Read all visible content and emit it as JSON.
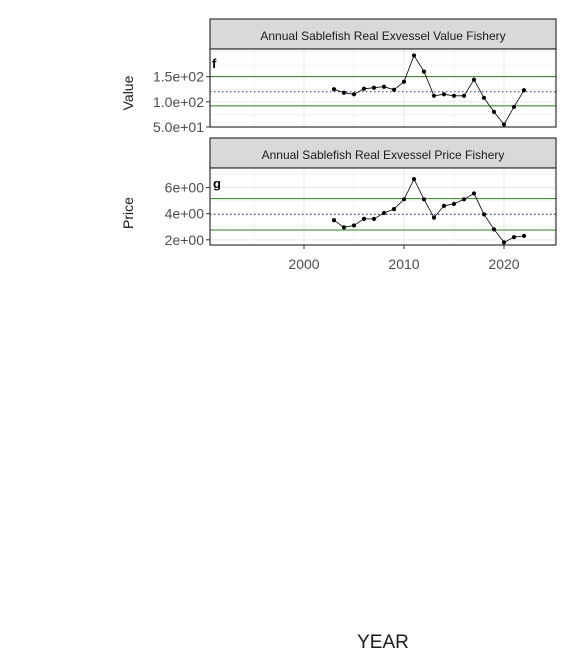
{
  "chart_data": [
    {
      "type": "line",
      "title": "Annual Sablefish Real Exvessel Value Fishery",
      "panel_tag": "f",
      "ylabel": "Value",
      "ylim": [
        50,
        205
      ],
      "yticks": [
        {
          "value": 50,
          "label": "5.0e+01"
        },
        {
          "value": 100,
          "label": "1.0e+02"
        },
        {
          "value": 150,
          "label": "1.5e+02"
        }
      ],
      "mean": 120,
      "upper_sd": 150,
      "lower_sd": 92,
      "x": [
        2003,
        2004,
        2005,
        2006,
        2007,
        2008,
        2009,
        2010,
        2011,
        2012,
        2013,
        2014,
        2015,
        2016,
        2017,
        2018,
        2019,
        2020,
        2021,
        2022
      ],
      "values": [
        125,
        118,
        115,
        126,
        128,
        130,
        124,
        140,
        192,
        160,
        112,
        115,
        112,
        112,
        144,
        108,
        80,
        55,
        90,
        123
      ],
      "grid": true
    },
    {
      "type": "line",
      "title": "Annual Sablefish Real Exvessel Price Fishery",
      "panel_tag": "g",
      "ylabel": "Price",
      "ylim": [
        1.6,
        7.5
      ],
      "yticks": [
        {
          "value": 2,
          "label": "2e+00"
        },
        {
          "value": 4,
          "label": "4e+00"
        },
        {
          "value": 6,
          "label": "6e+00"
        }
      ],
      "mean": 3.95,
      "upper_sd": 5.15,
      "lower_sd": 2.75,
      "x": [
        2003,
        2004,
        2005,
        2006,
        2007,
        2008,
        2009,
        2010,
        2011,
        2012,
        2013,
        2014,
        2015,
        2016,
        2017,
        2018,
        2019,
        2020,
        2021,
        2022
      ],
      "values": [
        3.5,
        2.95,
        3.1,
        3.6,
        3.6,
        4.05,
        4.35,
        5.1,
        6.65,
        5.1,
        3.7,
        4.6,
        4.75,
        5.1,
        5.55,
        3.95,
        2.8,
        1.8,
        2.2,
        2.3
      ],
      "grid": true
    }
  ],
  "x_axis": {
    "xlim": [
      1990.6,
      2025.2
    ],
    "ticks": [
      {
        "value": 2000,
        "label": "2000"
      },
      {
        "value": 2010,
        "label": "2010"
      },
      {
        "value": 2020,
        "label": "2020"
      }
    ],
    "xlabel": "YEAR"
  },
  "colors": {
    "data": "#000000",
    "sd_lines": "#2e7d1f",
    "mean_line": "#1e3a5f",
    "strip_fill": "#d9d9d9",
    "panel_border": "#333333",
    "grid": "#ebebeb"
  }
}
